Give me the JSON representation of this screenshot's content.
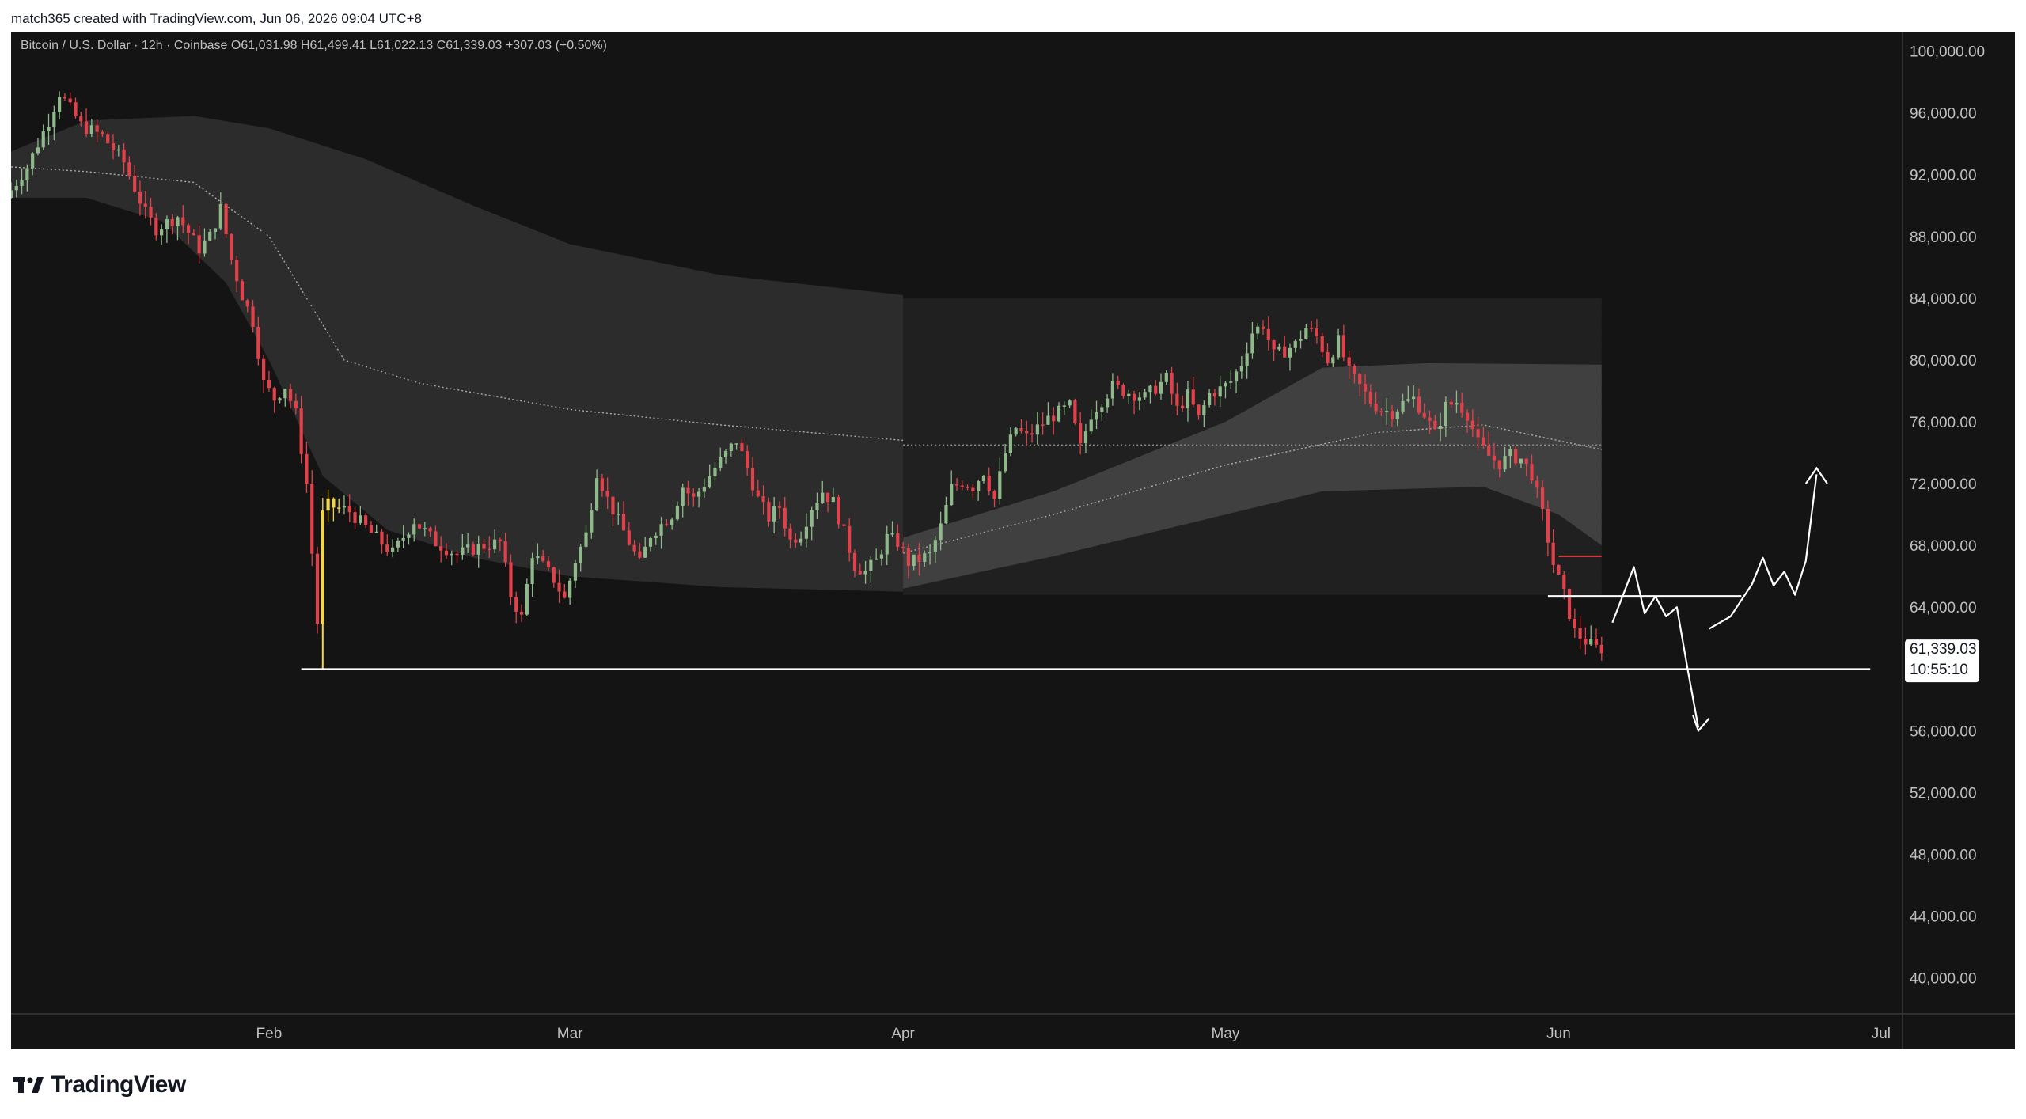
{
  "header": {
    "created_by": "match365 created with TradingView.com, Jun 06, 2026 09:04 UTC+8"
  },
  "footer": {
    "brand": "TradingView",
    "logo_icon": "tradingview-logo-icon"
  },
  "colors": {
    "background": "#141414",
    "up_candle": "#8fb98b",
    "down_candle": "#e0414a",
    "highlight_candle": "#f1d54a",
    "axis_text": "#bfbfbf",
    "band_fill": "#3a3a3a",
    "annotation": "#ffffff"
  },
  "chart_data": {
    "type": "candlestick",
    "symbol_info": {
      "name": "Bitcoin / U.S. Dollar",
      "interval": "12h",
      "exchange": "Coinbase",
      "open": "O61,031.98",
      "high": "H61,499.41",
      "low": "L61,022.13",
      "close": "C61,339.03",
      "change": "+307.03 (+0.50%)"
    },
    "y_axis": {
      "range": [
        38500,
        101000
      ],
      "ticks": [
        "100,000.00",
        "96,000.00",
        "92,000.00",
        "88,000.00",
        "84,000.00",
        "80,000.00",
        "76,000.00",
        "72,000.00",
        "68,000.00",
        "64,000.00",
        "60,000.00",
        "56,000.00",
        "52,000.00",
        "48,000.00",
        "44,000.00",
        "40,000.00"
      ],
      "tick_values": [
        100000,
        96000,
        92000,
        88000,
        84000,
        80000,
        76000,
        72000,
        68000,
        64000,
        60000,
        56000,
        52000,
        48000,
        44000,
        40000
      ]
    },
    "x_axis": {
      "range": [
        "2026-01-08",
        "2026-07-03"
      ],
      "ticks": [
        {
          "label": "Feb",
          "date": "2026-02-01"
        },
        {
          "label": "Mar",
          "date": "2026-03-01"
        },
        {
          "label": "Apr",
          "date": "2026-04-01"
        },
        {
          "label": "May",
          "date": "2026-05-01"
        },
        {
          "label": "Jun",
          "date": "2026-06-01"
        },
        {
          "label": "Jul",
          "date": "2026-07-01"
        }
      ]
    },
    "last_price": {
      "value": 61339.03,
      "price_label": "61,339.03",
      "countdown": "10:55:10"
    },
    "price_path": [
      [
        "2026-01-08",
        90500
      ],
      [
        "2026-01-10",
        92500
      ],
      [
        "2026-01-12",
        95500
      ],
      [
        "2026-01-13",
        97300
      ],
      [
        "2026-01-15",
        95200
      ],
      [
        "2026-01-17",
        94500
      ],
      [
        "2026-01-19",
        92800
      ],
      [
        "2026-01-21",
        89500
      ],
      [
        "2026-01-22",
        88500
      ],
      [
        "2026-01-24",
        89300
      ],
      [
        "2026-01-26",
        87200
      ],
      [
        "2026-01-27",
        88000
      ],
      [
        "2026-01-28",
        89800
      ],
      [
        "2026-01-29",
        86500
      ],
      [
        "2026-01-30",
        84200
      ],
      [
        "2026-01-31",
        82500
      ],
      [
        "2026-02-01",
        78500
      ],
      [
        "2026-02-02",
        77500
      ],
      [
        "2026-02-03",
        78300
      ],
      [
        "2026-02-04",
        76500
      ],
      [
        "2026-02-05",
        72000
      ],
      [
        "2026-02-06",
        63000
      ],
      [
        "2026-02-06.5",
        70000
      ],
      [
        "2026-02-07",
        70600
      ],
      [
        "2026-02-09",
        70200
      ],
      [
        "2026-02-11",
        68800
      ],
      [
        "2026-02-13",
        67500
      ],
      [
        "2026-02-15",
        69600
      ],
      [
        "2026-02-17",
        68200
      ],
      [
        "2026-02-19",
        67400
      ],
      [
        "2026-02-21",
        67900
      ],
      [
        "2026-02-23",
        68200
      ],
      [
        "2026-02-24",
        64800
      ],
      [
        "2026-02-25",
        63300
      ],
      [
        "2026-02-26",
        67500
      ],
      [
        "2026-02-28",
        65800
      ],
      [
        "2026-03-01",
        64500
      ],
      [
        "2026-03-02",
        67000
      ],
      [
        "2026-03-03",
        68700
      ],
      [
        "2026-03-04",
        72800
      ],
      [
        "2026-03-05",
        71000
      ],
      [
        "2026-03-07",
        68200
      ],
      [
        "2026-03-08",
        66800
      ],
      [
        "2026-03-09",
        68700
      ],
      [
        "2026-03-11",
        70000
      ],
      [
        "2026-03-12",
        71800
      ],
      [
        "2026-03-13",
        71000
      ],
      [
        "2026-03-15",
        73000
      ],
      [
        "2026-03-17",
        74800
      ],
      [
        "2026-03-18",
        73000
      ],
      [
        "2026-03-19",
        71000
      ],
      [
        "2026-03-20",
        69800
      ],
      [
        "2026-03-21",
        70500
      ],
      [
        "2026-03-22",
        68300
      ],
      [
        "2026-03-23",
        68800
      ],
      [
        "2026-03-24",
        70500
      ],
      [
        "2026-03-25",
        71500
      ],
      [
        "2026-03-26",
        70800
      ],
      [
        "2026-03-27",
        68800
      ],
      [
        "2026-03-28",
        66700
      ],
      [
        "2026-03-29",
        66300
      ],
      [
        "2026-03-30",
        67000
      ],
      [
        "2026-03-31",
        68500
      ],
      [
        "2026-04-01",
        68200
      ],
      [
        "2026-04-02",
        66900
      ],
      [
        "2026-04-03",
        67100
      ],
      [
        "2026-04-04",
        67400
      ],
      [
        "2026-04-05",
        69200
      ],
      [
        "2026-04-06",
        71700
      ],
      [
        "2026-04-07",
        72100
      ],
      [
        "2026-04-08",
        71800
      ],
      [
        "2026-04-09",
        72800
      ],
      [
        "2026-04-10",
        71000
      ],
      [
        "2026-04-11",
        74000
      ],
      [
        "2026-04-12",
        75600
      ],
      [
        "2026-04-13",
        75000
      ],
      [
        "2026-04-15",
        76200
      ],
      [
        "2026-04-17",
        77000
      ],
      [
        "2026-04-18",
        74300
      ],
      [
        "2026-04-19",
        76500
      ],
      [
        "2026-04-21",
        78300
      ],
      [
        "2026-04-22",
        78000
      ],
      [
        "2026-04-24",
        77600
      ],
      [
        "2026-04-26",
        78800
      ],
      [
        "2026-04-27",
        76800
      ],
      [
        "2026-04-28",
        77700
      ],
      [
        "2026-04-29",
        76200
      ],
      [
        "2026-04-30",
        77800
      ],
      [
        "2026-05-01",
        78100
      ],
      [
        "2026-05-02",
        78600
      ],
      [
        "2026-05-03",
        79800
      ],
      [
        "2026-05-04",
        81800
      ],
      [
        "2026-05-05",
        82300
      ],
      [
        "2026-05-06",
        80300
      ],
      [
        "2026-05-07",
        80600
      ],
      [
        "2026-05-08",
        81000
      ],
      [
        "2026-05-09",
        82100
      ],
      [
        "2026-05-10",
        81500
      ],
      [
        "2026-05-11",
        80000
      ],
      [
        "2026-05-12",
        81200
      ],
      [
        "2026-05-13",
        79200
      ],
      [
        "2026-05-14",
        78300
      ],
      [
        "2026-05-15",
        77300
      ],
      [
        "2026-05-16",
        76800
      ],
      [
        "2026-05-17",
        76600
      ],
      [
        "2026-05-18",
        77200
      ],
      [
        "2026-05-19",
        77500
      ],
      [
        "2026-05-20",
        76500
      ],
      [
        "2026-05-21",
        75200
      ],
      [
        "2026-05-22",
        77000
      ],
      [
        "2026-05-23",
        77300
      ],
      [
        "2026-05-24",
        76500
      ],
      [
        "2026-05-25",
        74600
      ],
      [
        "2026-05-26",
        73800
      ],
      [
        "2026-05-27",
        73300
      ],
      [
        "2026-05-28",
        73800
      ],
      [
        "2026-05-29",
        73600
      ],
      [
        "2026-05-30",
        72600
      ],
      [
        "2026-05-31",
        70000
      ],
      [
        "2026-06-01",
        66800
      ],
      [
        "2026-06-02",
        64800
      ],
      [
        "2026-06-03",
        62400
      ],
      [
        "2026-06-04",
        61800
      ],
      [
        "2026-06-05",
        61339
      ]
    ],
    "annotations": [
      {
        "type": "horizontal_line",
        "price": 60000,
        "from": "2026-02-04",
        "to": "2026-06-30"
      },
      {
        "type": "horizontal_line",
        "price": 64700,
        "from": "2026-05-31",
        "to": "2026-06-18"
      },
      {
        "type": "range_box",
        "price_top": 84000,
        "price_bottom": 64800,
        "from": "2026-04-01",
        "to": "2026-06-05"
      },
      {
        "type": "red_line",
        "price": 67300,
        "from": "2026-06-01",
        "to": "2026-06-05"
      },
      {
        "type": "freehand_drawing",
        "description": "projected path arrows"
      }
    ]
  }
}
